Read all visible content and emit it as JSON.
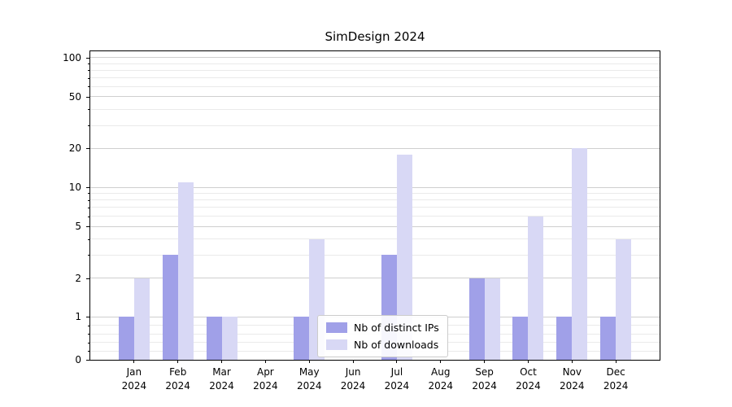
{
  "chart_data": {
    "type": "bar",
    "title": "SimDesign 2024",
    "categories": [
      "Jan 2024",
      "Feb 2024",
      "Mar 2024",
      "Apr 2024",
      "May 2024",
      "Jun 2024",
      "Jul 2024",
      "Aug 2024",
      "Sep 2024",
      "Oct 2024",
      "Nov 2024",
      "Dec 2024"
    ],
    "series": [
      {
        "name": "Nb of distinct IPs",
        "color": "#a0a0e8",
        "values": [
          1,
          3,
          1,
          0,
          1,
          0,
          3,
          0,
          2,
          1,
          1,
          1
        ]
      },
      {
        "name": "Nb of downloads",
        "color": "#d8d8f5",
        "values": [
          2,
          11,
          1,
          0,
          4,
          0,
          18,
          0,
          2,
          6,
          20,
          4
        ]
      }
    ],
    "xlabel": "",
    "ylabel": "",
    "yscale": "symlog",
    "ylim": [
      0,
      111
    ],
    "y_ticks": [
      0,
      1,
      2,
      5,
      10,
      20,
      50,
      100
    ],
    "y_minor_ticks": [
      0.2,
      0.4,
      0.6,
      0.8,
      3,
      4,
      6,
      7,
      8,
      9,
      30,
      40,
      60,
      70,
      80,
      90
    ],
    "grid": true,
    "legend_position": "lower center"
  }
}
